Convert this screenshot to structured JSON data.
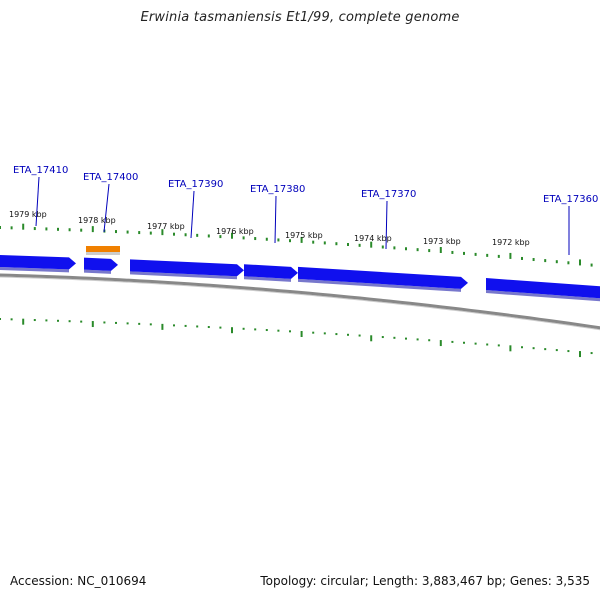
{
  "header": {
    "title": "Erwinia tasmaniensis Et1/99, complete genome"
  },
  "footer": {
    "accession": "Accession: NC_010694",
    "summary": "Topology: circular; Length: 3,883,467 bp; Genes: 3,535"
  },
  "colors": {
    "gene": "#1010ee",
    "gene_shadow": "#7777cc",
    "backbone": "#888888",
    "ticks": "#2a8a2a",
    "leader": "#0000bb",
    "highlight": "#f08000"
  },
  "scale": {
    "tick_labels": [
      "1979 kbp",
      "1978 kbp",
      "1977 kbp",
      "1976 kbp",
      "1975 kbp",
      "1974 kbp",
      "1973 kbp",
      "1972 kbp"
    ]
  },
  "genes": [
    {
      "name": "ETA_17410",
      "strand": "plus"
    },
    {
      "name": "ETA_17400",
      "strand": "plus"
    },
    {
      "name": "ETA_17390",
      "strand": "plus"
    },
    {
      "name": "ETA_17380",
      "strand": "plus"
    },
    {
      "name": "ETA_17370",
      "strand": "plus"
    },
    {
      "name": "ETA_17360",
      "strand": "plus"
    }
  ]
}
